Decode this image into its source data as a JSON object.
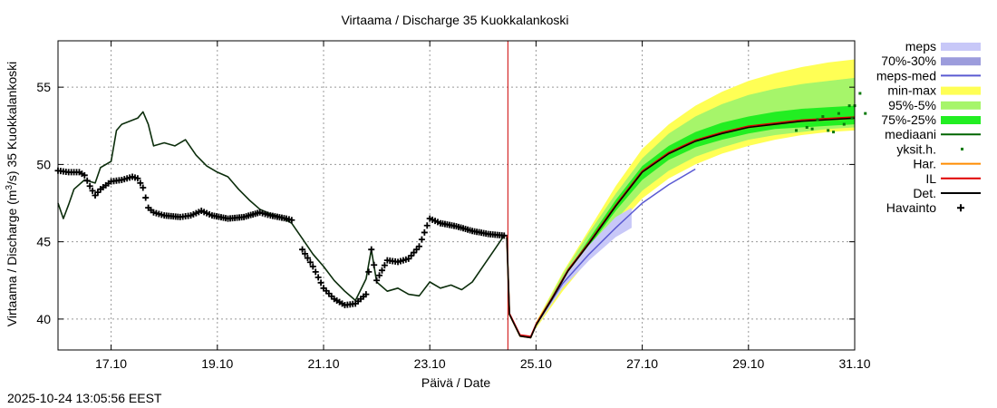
{
  "chart_data": {
    "type": "line",
    "title": "Virtaama / Discharge  35 Kuokkalankoski",
    "xlabel": "Päivä / Date",
    "ylabel": "Virtaama / Discharge (m³/s)  35 Kuokkalankoski",
    "ylabel_parts": [
      "Virtaama / Discharge (m",
      "3",
      "/s)  35 Kuokkalankoski"
    ],
    "x_range_days": [
      16.0,
      31.0
    ],
    "ylim": [
      38,
      58
    ],
    "x_ticks": [
      {
        "day": 17,
        "label": "17.10"
      },
      {
        "day": 19,
        "label": "19.10"
      },
      {
        "day": 21,
        "label": "21.10"
      },
      {
        "day": 23,
        "label": "23.10"
      },
      {
        "day": 25,
        "label": "25.10"
      },
      {
        "day": 27,
        "label": "27.10"
      },
      {
        "day": 29,
        "label": "29.10"
      },
      {
        "day": 31,
        "label": "31.10"
      }
    ],
    "y_ticks": [
      40,
      45,
      50,
      55
    ],
    "grid": true,
    "now_day": 24.47,
    "legend_position": "right",
    "legend": [
      {
        "label": "meps",
        "kind": "band",
        "color": "#c8c8f8"
      },
      {
        "label": "70%-30%",
        "kind": "band",
        "color": "#9c9cdc"
      },
      {
        "label": "meps-med",
        "kind": "line",
        "color": "#5a5ad2"
      },
      {
        "label": "min-max",
        "kind": "band",
        "color": "#ffff55"
      },
      {
        "label": "95%-5%",
        "kind": "band",
        "color": "#a6f56a"
      },
      {
        "label": "75%-25%",
        "kind": "band",
        "color": "#22ee22"
      },
      {
        "label": "mediaani",
        "kind": "line",
        "color": "#006400"
      },
      {
        "label": "yksit.h.",
        "kind": "points",
        "color": "#0a7a0a"
      },
      {
        "label": "Har.",
        "kind": "line",
        "color": "#ff8c00"
      },
      {
        "label": "IL",
        "kind": "line",
        "color": "#e00000"
      },
      {
        "label": "Det.",
        "kind": "line",
        "color": "#000000"
      },
      {
        "label": "Havainto",
        "kind": "marker",
        "color": "#000000"
      }
    ],
    "series": {
      "history_line": [
        [
          16.0,
          47.5
        ],
        [
          16.1,
          46.5
        ],
        [
          16.2,
          47.4
        ],
        [
          16.3,
          48.4
        ],
        [
          16.5,
          49.0
        ],
        [
          16.7,
          48.8
        ],
        [
          16.8,
          49.8
        ],
        [
          17.0,
          50.2
        ],
        [
          17.1,
          52.2
        ],
        [
          17.2,
          52.6
        ],
        [
          17.5,
          53.0
        ],
        [
          17.6,
          53.4
        ],
        [
          17.7,
          52.6
        ],
        [
          17.8,
          51.2
        ],
        [
          18.0,
          51.4
        ],
        [
          18.2,
          51.2
        ],
        [
          18.4,
          51.6
        ],
        [
          18.6,
          50.6
        ],
        [
          18.8,
          49.9
        ],
        [
          19.0,
          49.5
        ],
        [
          19.2,
          49.2
        ],
        [
          19.4,
          48.4
        ],
        [
          19.6,
          47.7
        ],
        [
          19.8,
          47.1
        ],
        [
          20.0,
          46.8
        ],
        [
          20.2,
          46.6
        ],
        [
          20.4,
          46.2
        ],
        [
          20.6,
          45.2
        ],
        [
          20.8,
          44.2
        ],
        [
          21.0,
          43.4
        ],
        [
          21.2,
          42.5
        ],
        [
          21.4,
          41.8
        ],
        [
          21.6,
          41.2
        ],
        [
          21.8,
          42.6
        ],
        [
          21.9,
          44.5
        ],
        [
          22.0,
          42.4
        ],
        [
          22.2,
          41.8
        ],
        [
          22.4,
          42.0
        ],
        [
          22.6,
          41.6
        ],
        [
          22.8,
          41.5
        ],
        [
          23.0,
          42.4
        ],
        [
          23.2,
          42.0
        ],
        [
          23.4,
          42.2
        ],
        [
          23.6,
          41.9
        ],
        [
          23.8,
          42.4
        ],
        [
          24.0,
          43.4
        ],
        [
          24.2,
          44.4
        ],
        [
          24.4,
          45.4
        ],
        [
          24.45,
          45.4
        ]
      ],
      "observed": [
        [
          16.0,
          49.6
        ],
        [
          16.2,
          49.5
        ],
        [
          16.4,
          49.5
        ],
        [
          16.5,
          49.3
        ],
        [
          16.6,
          48.6
        ],
        [
          16.7,
          48.0
        ],
        [
          16.8,
          48.4
        ],
        [
          17.0,
          48.9
        ],
        [
          17.2,
          49.0
        ],
        [
          17.4,
          49.2
        ],
        [
          17.5,
          49.1
        ],
        [
          17.6,
          48.5
        ],
        [
          17.7,
          47.2
        ],
        [
          17.8,
          46.9
        ],
        [
          18.0,
          46.7
        ],
        [
          18.3,
          46.6
        ],
        [
          18.5,
          46.7
        ],
        [
          18.7,
          47.0
        ],
        [
          18.9,
          46.7
        ],
        [
          19.2,
          46.5
        ],
        [
          19.5,
          46.6
        ],
        [
          19.8,
          46.9
        ],
        [
          20.0,
          46.7
        ],
        [
          20.3,
          46.5
        ],
        [
          20.4,
          46.4
        ]
      ],
      "observed_late": [
        [
          20.6,
          44.5
        ],
        [
          20.8,
          43.4
        ],
        [
          21.0,
          42.0
        ],
        [
          21.2,
          41.3
        ],
        [
          21.4,
          40.9
        ],
        [
          21.6,
          41.0
        ],
        [
          21.8,
          41.6
        ],
        [
          21.9,
          44.5
        ],
        [
          22.0,
          42.5
        ],
        [
          22.2,
          43.8
        ],
        [
          22.4,
          43.7
        ],
        [
          22.6,
          43.9
        ],
        [
          22.8,
          44.7
        ],
        [
          23.0,
          46.5
        ],
        [
          23.2,
          46.2
        ],
        [
          23.5,
          46.0
        ],
        [
          23.8,
          45.7
        ],
        [
          24.1,
          45.5
        ],
        [
          24.4,
          45.4
        ]
      ],
      "forecast_det": [
        [
          24.45,
          45.3
        ],
        [
          24.5,
          40.3
        ],
        [
          24.7,
          38.9
        ],
        [
          24.9,
          38.8
        ],
        [
          25.0,
          39.6
        ],
        [
          25.3,
          41.3
        ],
        [
          25.6,
          43.1
        ],
        [
          26.0,
          44.9
        ],
        [
          26.5,
          47.3
        ],
        [
          27.0,
          49.5
        ],
        [
          27.5,
          50.7
        ],
        [
          28.0,
          51.5
        ],
        [
          28.5,
          52.0
        ],
        [
          29.0,
          52.4
        ],
        [
          29.5,
          52.6
        ],
        [
          30.0,
          52.8
        ],
        [
          30.5,
          52.9
        ],
        [
          31.0,
          53.0
        ]
      ],
      "meps_med": [
        [
          25.0,
          39.6
        ],
        [
          25.5,
          42.3
        ],
        [
          26.0,
          44.2
        ],
        [
          26.5,
          45.9
        ],
        [
          27.0,
          47.5
        ],
        [
          27.5,
          48.7
        ],
        [
          28.0,
          49.7
        ]
      ],
      "band_minmax_upper": [
        [
          25.0,
          39.8
        ],
        [
          25.5,
          43.0
        ],
        [
          26.0,
          45.8
        ],
        [
          26.5,
          48.6
        ],
        [
          27.0,
          51.0
        ],
        [
          27.5,
          52.6
        ],
        [
          28.0,
          53.8
        ],
        [
          28.5,
          54.7
        ],
        [
          29.0,
          55.4
        ],
        [
          29.5,
          55.9
        ],
        [
          30.0,
          56.3
        ],
        [
          30.5,
          56.6
        ],
        [
          31.0,
          56.8
        ]
      ],
      "band_minmax_lower": [
        [
          25.0,
          39.4
        ],
        [
          25.5,
          41.8
        ],
        [
          26.0,
          43.9
        ],
        [
          26.5,
          45.9
        ],
        [
          27.0,
          47.8
        ],
        [
          27.5,
          49.1
        ],
        [
          28.0,
          50.0
        ],
        [
          28.5,
          50.7
        ],
        [
          29.0,
          51.2
        ],
        [
          29.5,
          51.6
        ],
        [
          30.0,
          51.9
        ],
        [
          30.5,
          52.1
        ],
        [
          31.0,
          52.2
        ]
      ],
      "band_95_upper": [
        [
          25.0,
          39.7
        ],
        [
          25.5,
          42.9
        ],
        [
          26.0,
          45.6
        ],
        [
          26.5,
          48.1
        ],
        [
          27.0,
          50.4
        ],
        [
          27.5,
          52.0
        ],
        [
          28.0,
          53.1
        ],
        [
          28.5,
          53.9
        ],
        [
          29.0,
          54.5
        ],
        [
          29.5,
          54.9
        ],
        [
          30.0,
          55.2
        ],
        [
          30.5,
          55.4
        ],
        [
          31.0,
          55.6
        ]
      ],
      "band_95_lower": [
        [
          25.0,
          39.5
        ],
        [
          25.5,
          42.0
        ],
        [
          26.0,
          44.2
        ],
        [
          26.5,
          46.4
        ],
        [
          27.0,
          48.3
        ],
        [
          27.5,
          49.6
        ],
        [
          28.0,
          50.5
        ],
        [
          28.5,
          51.1
        ],
        [
          29.0,
          51.6
        ],
        [
          29.5,
          51.9
        ],
        [
          30.0,
          52.1
        ],
        [
          30.5,
          52.3
        ],
        [
          31.0,
          52.4
        ]
      ],
      "band_75_upper": [
        [
          25.0,
          39.65
        ],
        [
          25.5,
          42.6
        ],
        [
          26.0,
          45.2
        ],
        [
          26.5,
          47.7
        ],
        [
          27.0,
          49.9
        ],
        [
          27.5,
          51.2
        ],
        [
          28.0,
          52.1
        ],
        [
          28.5,
          52.7
        ],
        [
          29.0,
          53.1
        ],
        [
          29.5,
          53.4
        ],
        [
          30.0,
          53.6
        ],
        [
          30.5,
          53.7
        ],
        [
          31.0,
          53.8
        ]
      ],
      "band_75_lower": [
        [
          25.0,
          39.55
        ],
        [
          25.5,
          42.3
        ],
        [
          26.0,
          44.7
        ],
        [
          26.5,
          47.0
        ],
        [
          27.0,
          49.0
        ],
        [
          27.5,
          50.3
        ],
        [
          28.0,
          51.1
        ],
        [
          28.5,
          51.6
        ],
        [
          29.0,
          52.0
        ],
        [
          29.5,
          52.3
        ],
        [
          30.0,
          52.4
        ],
        [
          30.5,
          52.5
        ],
        [
          31.0,
          52.6
        ]
      ],
      "meps_upper": [
        [
          25.0,
          39.7
        ],
        [
          25.5,
          42.6
        ],
        [
          26.0,
          44.8
        ],
        [
          26.5,
          46.6
        ],
        [
          26.8,
          47.2
        ]
      ],
      "meps_lower": [
        [
          25.0,
          39.5
        ],
        [
          25.5,
          42.0
        ],
        [
          26.0,
          43.8
        ],
        [
          26.5,
          45.3
        ],
        [
          26.8,
          45.9
        ]
      ],
      "single_members": [
        [
          29.9,
          52.2
        ],
        [
          30.1,
          52.4
        ],
        [
          30.2,
          52.3
        ],
        [
          30.3,
          52.9
        ],
        [
          30.4,
          53.1
        ],
        [
          30.5,
          52.2
        ],
        [
          30.6,
          52.1
        ],
        [
          30.7,
          53.3
        ],
        [
          30.8,
          52.6
        ],
        [
          30.9,
          53.8
        ],
        [
          31.0,
          53.8
        ],
        [
          31.1,
          54.6
        ],
        [
          30.95,
          53.0
        ],
        [
          31.2,
          53.3
        ]
      ]
    }
  },
  "timestamp": "2025-10-24 13:05:56 EEST"
}
